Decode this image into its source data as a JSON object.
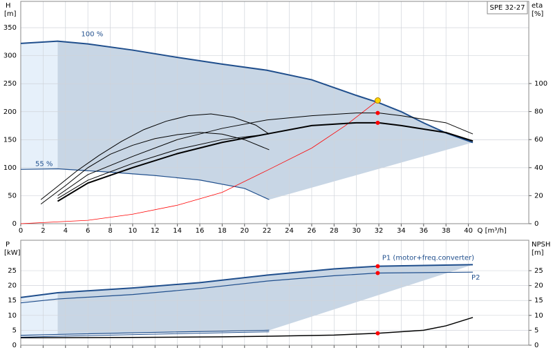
{
  "title": "SPE 32-27",
  "chart_data": [
    {
      "type": "line",
      "ylabel": "H",
      "yunit": "[m]",
      "y2label": "eta",
      "y2unit": "[%]",
      "xlabel": "Q [m³/h]",
      "xlim": [
        0,
        45.4
      ],
      "xticks": [
        0,
        2,
        4,
        6,
        8,
        10,
        12,
        14,
        16,
        18,
        20,
        22,
        24,
        26,
        28,
        30,
        32,
        34,
        36,
        38,
        40
      ],
      "ylim": [
        0,
        397
      ],
      "yticks": [
        0,
        50,
        100,
        150,
        200,
        250,
        300,
        350
      ],
      "y2lim": [
        0,
        158.6
      ],
      "y2ticks": [
        0,
        20,
        40,
        60,
        80,
        100
      ],
      "grid": true,
      "series": [
        {
          "name": "100 %",
          "color": "#1f4e8c",
          "width": 2,
          "axis": "y",
          "x": [
            0,
            3.3,
            6,
            10,
            14,
            18,
            22,
            26,
            28,
            30,
            32,
            34,
            36,
            38,
            40.4
          ],
          "values": [
            322,
            326,
            321,
            310,
            297,
            285,
            274,
            257,
            243,
            229,
            216,
            200,
            180,
            162,
            145
          ]
        },
        {
          "name": "55 %",
          "color": "#1f4e8c",
          "width": 1.2,
          "axis": "y",
          "x": [
            0,
            3.3,
            8,
            12,
            16,
            20,
            22.2
          ],
          "values": [
            97,
            98,
            92,
            86,
            78,
            63,
            43
          ]
        },
        {
          "color": "#000000",
          "width": 1,
          "axis": "y",
          "x": [
            1.8,
            4,
            6,
            8,
            10,
            12,
            14,
            16,
            18,
            20,
            22.2
          ],
          "values": [
            35,
            68,
            100,
            124,
            140,
            152,
            159,
            163,
            160,
            150,
            132
          ]
        },
        {
          "color": "#000000",
          "width": 1,
          "axis": "y",
          "x": [
            1.8,
            3,
            5,
            7,
            9,
            11,
            13,
            15,
            17,
            19,
            21,
            22.2
          ],
          "values": [
            43,
            62,
            94,
            122,
            147,
            168,
            183,
            193,
            196,
            190,
            176,
            160
          ]
        },
        {
          "color": "#ff0000",
          "width": 0.8,
          "axis": "y",
          "x": [
            0,
            6,
            10,
            14,
            18,
            22,
            26,
            29,
            31.9
          ],
          "values": [
            0,
            6,
            17,
            33,
            56,
            95,
            135,
            175,
            220
          ]
        },
        {
          "color": "#000000",
          "width": 2,
          "axis": "y2",
          "x": [
            3.3,
            6,
            10,
            14,
            18,
            22,
            26,
            30,
            32,
            34,
            38,
            40.4
          ],
          "values": [
            16,
            29,
            40,
            50,
            58,
            64,
            70,
            72,
            72,
            70,
            65,
            59
          ]
        },
        {
          "color": "#000000",
          "width": 1,
          "axis": "y2",
          "x": [
            3.3,
            6,
            10,
            14,
            18,
            22,
            26,
            30,
            32,
            34,
            38,
            40.4
          ],
          "values": [
            20,
            35,
            48,
            60,
            68,
            74,
            77,
            79,
            79,
            77,
            72,
            64
          ]
        },
        {
          "color": "#000000",
          "width": 1,
          "axis": "y2",
          "x": [
            3.3,
            6,
            10,
            14,
            18,
            22.2
          ],
          "values": [
            18,
            31,
            43,
            53,
            60,
            64
          ]
        }
      ],
      "points": [
        {
          "x": 31.9,
          "y": 220,
          "axis": "y",
          "color": "#ffd700"
        },
        {
          "x": 31.9,
          "y": 79,
          "axis": "y2",
          "color": "#ff0000"
        },
        {
          "x": 31.9,
          "y": 72,
          "axis": "y2",
          "color": "#ff0000"
        }
      ]
    },
    {
      "type": "line",
      "ylabel": "P",
      "yunit": "[kW]",
      "y2label": "NPSH",
      "y2unit": "[m]",
      "xlim": [
        0,
        45.4
      ],
      "ylim": [
        0,
        35.2
      ],
      "yticks": [
        0,
        5,
        10,
        15,
        20,
        25
      ],
      "y2lim": [
        0,
        35.2
      ],
      "y2ticks": [
        0,
        5,
        10,
        15,
        20,
        25
      ],
      "grid": true,
      "series": [
        {
          "name": "P1 (motor+freq.converter)",
          "color": "#1f4e8c",
          "width": 2,
          "axis": "y",
          "x": [
            0,
            3.3,
            10,
            16,
            22,
            28,
            31.9,
            40.4
          ],
          "values": [
            16,
            17.6,
            19.2,
            21,
            23.5,
            25.6,
            26.5,
            27
          ]
        },
        {
          "name": "P2",
          "color": "#1f4e8c",
          "width": 1.2,
          "axis": "y",
          "x": [
            0,
            3.3,
            10,
            16,
            22,
            28,
            31.9,
            40.4
          ],
          "values": [
            14.2,
            15.5,
            17,
            19,
            21.5,
            23.3,
            24.2,
            24.5
          ]
        },
        {
          "color": "#1f4e8c",
          "width": 1.2,
          "axis": "y",
          "x": [
            0,
            3.3,
            12,
            22.2
          ],
          "values": [
            3.3,
            3.6,
            4.3,
            5
          ]
        },
        {
          "color": "#1f4e8c",
          "width": 1,
          "axis": "y",
          "x": [
            0,
            3.3,
            12,
            22.2
          ],
          "values": [
            2.7,
            3,
            3.7,
            4.5
          ]
        },
        {
          "color": "#000000",
          "width": 1.5,
          "axis": "y2",
          "x": [
            0,
            10,
            18,
            22.2,
            28,
            31.9,
            36,
            38,
            40.4
          ],
          "values": [
            2.5,
            2.6,
            2.8,
            3,
            3.4,
            4,
            5,
            6.5,
            9.3
          ]
        }
      ],
      "points": [
        {
          "x": 31.9,
          "y": 26.5,
          "axis": "y",
          "color": "#ff0000"
        },
        {
          "x": 31.9,
          "y": 24.2,
          "axis": "y",
          "color": "#ff0000"
        },
        {
          "x": 31.9,
          "y": 4,
          "axis": "y2",
          "color": "#ff0000"
        }
      ]
    }
  ]
}
